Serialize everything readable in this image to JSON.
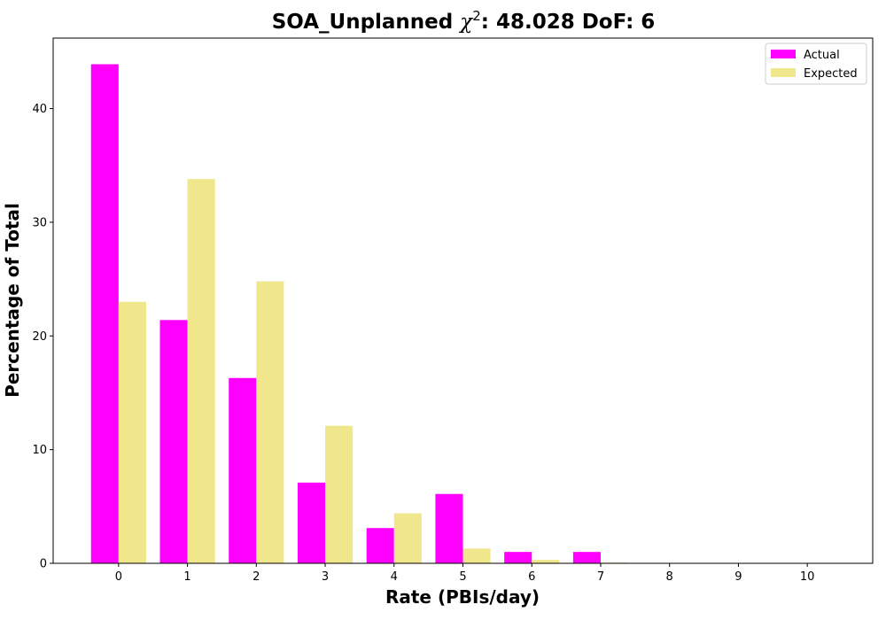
{
  "chart_data": {
    "type": "bar",
    "title": {
      "prefix": "SOA_Unplanned ",
      "chi": "χ",
      "sup": "2",
      "suffix": ": 48.028 DoF: 6"
    },
    "xlabel": "Rate (PBIs/day)",
    "ylabel": "Percentage of Total",
    "categories": [
      "0",
      "1",
      "2",
      "3",
      "4",
      "5",
      "6",
      "7",
      "8",
      "9",
      "10"
    ],
    "xlim": [
      -0.95,
      10.95
    ],
    "ylim": [
      0,
      46.2
    ],
    "yticks": [
      0,
      10,
      20,
      30,
      40
    ],
    "grid": false,
    "legend_position": "top-right",
    "series": [
      {
        "name": "Actual",
        "color": "#ff00ff",
        "values": [
          43.9,
          21.4,
          16.3,
          7.1,
          3.1,
          6.1,
          1.0,
          1.0,
          0,
          0,
          0
        ]
      },
      {
        "name": "Expected",
        "color": "#f0e68c",
        "values": [
          23.0,
          33.8,
          24.8,
          12.1,
          4.4,
          1.3,
          0.3,
          0.06,
          0.01,
          0,
          0
        ]
      }
    ]
  }
}
